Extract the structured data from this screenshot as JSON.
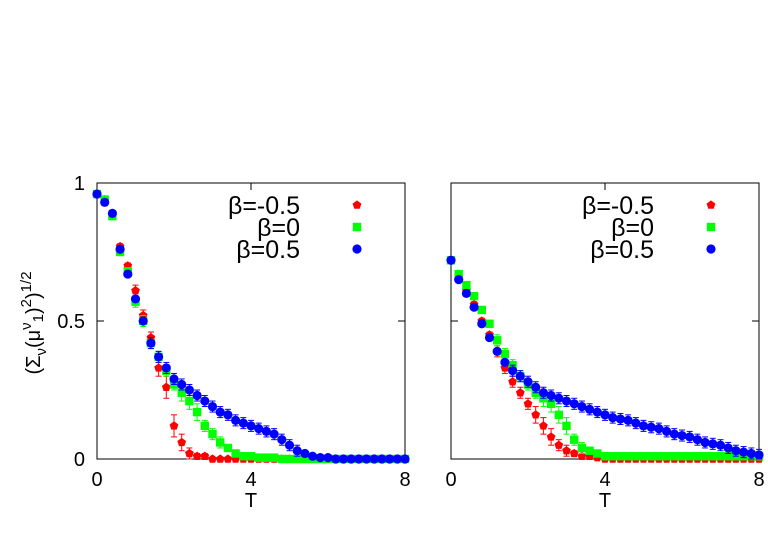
{
  "chart_data": [
    {
      "type": "scatter",
      "panel": "left",
      "xlabel": "T",
      "ylabel": "(Σ_ν(μ^ν_1)^2)^1/2",
      "xlim": [
        0,
        8
      ],
      "ylim": [
        0,
        1
      ],
      "xticks": [
        "0",
        "4",
        "8"
      ],
      "yticks": [
        "0",
        "0.5",
        "1"
      ],
      "grid": false,
      "legend_position": "top-right",
      "series": [
        {
          "name": "β=-0.5",
          "color": "#ff0000",
          "marker": "pentagon",
          "x": [
            0.0,
            0.2,
            0.4,
            0.6,
            0.8,
            1.0,
            1.2,
            1.4,
            1.6,
            1.8,
            2.0,
            2.2,
            2.4,
            2.6,
            2.8,
            3.0,
            3.2,
            3.4,
            3.6,
            3.8,
            4.0,
            4.2,
            4.4,
            4.6,
            4.8,
            5.0,
            5.2,
            5.4,
            5.6,
            5.8,
            6.0,
            6.2,
            6.4,
            6.6,
            6.8,
            7.0,
            7.2,
            7.4,
            7.6,
            7.8,
            8.0
          ],
          "y": [
            0.96,
            0.94,
            0.89,
            0.77,
            0.7,
            0.61,
            0.52,
            0.44,
            0.33,
            0.26,
            0.12,
            0.06,
            0.02,
            0.01,
            0.01,
            0.0,
            0.0,
            0.0,
            0.0,
            0.0,
            0.0,
            0.0,
            0.0,
            0.0,
            0.0,
            0.0,
            0.0,
            0.0,
            0.0,
            0.0,
            0.0,
            0.0,
            0.0,
            0.0,
            0.0,
            0.0,
            0.0,
            0.0,
            0.0,
            0.0,
            0.0
          ],
          "err": [
            0.01,
            0.01,
            0.01,
            0.01,
            0.01,
            0.02,
            0.02,
            0.02,
            0.03,
            0.04,
            0.04,
            0.03,
            0.02,
            0.01,
            0.01,
            0.005,
            0.005,
            0.005,
            0.005,
            0.005,
            0.005,
            0.005,
            0.005,
            0.005,
            0.005,
            0.005,
            0.005,
            0.005,
            0.005,
            0.005,
            0.005,
            0.005,
            0.005,
            0.005,
            0.005,
            0.005,
            0.005,
            0.005,
            0.005,
            0.005,
            0.005
          ]
        },
        {
          "name": "β=0",
          "color": "#00ff00",
          "marker": "square",
          "x": [
            0.0,
            0.2,
            0.4,
            0.6,
            0.8,
            1.0,
            1.2,
            1.4,
            1.6,
            1.8,
            2.0,
            2.2,
            2.4,
            2.6,
            2.8,
            3.0,
            3.2,
            3.4,
            3.6,
            3.8,
            4.0,
            4.2,
            4.4,
            4.6,
            4.8,
            5.0,
            5.2,
            5.4,
            5.6,
            5.8,
            6.0,
            6.2,
            6.4,
            6.6,
            6.8,
            7.0,
            7.2,
            7.4,
            7.6,
            7.8,
            8.0
          ],
          "y": [
            0.96,
            0.94,
            0.88,
            0.75,
            0.68,
            0.57,
            0.5,
            0.42,
            0.37,
            0.32,
            0.27,
            0.24,
            0.21,
            0.17,
            0.12,
            0.09,
            0.06,
            0.04,
            0.02,
            0.01,
            0.01,
            0.005,
            0.005,
            0.005,
            0.0,
            0.0,
            0.0,
            0.0,
            0.0,
            0.0,
            0.0,
            0.0,
            0.0,
            0.0,
            0.0,
            0.0,
            0.0,
            0.0,
            0.0,
            0.0,
            0.0
          ],
          "err": [
            0.01,
            0.01,
            0.01,
            0.01,
            0.01,
            0.02,
            0.02,
            0.02,
            0.02,
            0.02,
            0.02,
            0.03,
            0.03,
            0.03,
            0.02,
            0.02,
            0.02,
            0.01,
            0.01,
            0.01,
            0.005,
            0.005,
            0.005,
            0.005,
            0.005,
            0.005,
            0.005,
            0.005,
            0.005,
            0.005,
            0.005,
            0.005,
            0.005,
            0.005,
            0.005,
            0.005,
            0.005,
            0.005,
            0.005,
            0.005,
            0.005
          ]
        },
        {
          "name": "β=0.5",
          "color": "#0000ff",
          "marker": "circle",
          "x": [
            0.0,
            0.2,
            0.4,
            0.6,
            0.8,
            1.0,
            1.2,
            1.4,
            1.6,
            1.8,
            2.0,
            2.2,
            2.4,
            2.6,
            2.8,
            3.0,
            3.2,
            3.4,
            3.6,
            3.8,
            4.0,
            4.2,
            4.4,
            4.6,
            4.8,
            5.0,
            5.2,
            5.4,
            5.6,
            5.8,
            6.0,
            6.2,
            6.4,
            6.6,
            6.8,
            7.0,
            7.2,
            7.4,
            7.6,
            7.8,
            8.0
          ],
          "y": [
            0.96,
            0.93,
            0.89,
            0.76,
            0.67,
            0.58,
            0.5,
            0.42,
            0.37,
            0.33,
            0.29,
            0.27,
            0.25,
            0.23,
            0.21,
            0.19,
            0.17,
            0.16,
            0.14,
            0.13,
            0.12,
            0.11,
            0.1,
            0.09,
            0.07,
            0.05,
            0.03,
            0.02,
            0.01,
            0.005,
            0.005,
            0.0,
            0.0,
            0.0,
            0.0,
            0.0,
            0.0,
            0.0,
            0.0,
            0.0,
            0.0
          ],
          "err": [
            0.01,
            0.01,
            0.01,
            0.01,
            0.01,
            0.01,
            0.01,
            0.02,
            0.02,
            0.02,
            0.02,
            0.02,
            0.02,
            0.02,
            0.02,
            0.02,
            0.02,
            0.02,
            0.02,
            0.02,
            0.02,
            0.02,
            0.02,
            0.02,
            0.02,
            0.02,
            0.02,
            0.01,
            0.01,
            0.005,
            0.005,
            0.005,
            0.005,
            0.005,
            0.005,
            0.005,
            0.005,
            0.005,
            0.005,
            0.005,
            0.005
          ]
        }
      ]
    },
    {
      "type": "scatter",
      "panel": "right",
      "xlabel": "T",
      "ylabel": "",
      "xlim": [
        0,
        8
      ],
      "ylim": [
        0,
        1
      ],
      "xticks": [
        "0",
        "4",
        "8"
      ],
      "yticks": [],
      "grid": false,
      "legend_position": "top-right",
      "series": [
        {
          "name": "β=-0.5",
          "color": "#ff0000",
          "marker": "pentagon",
          "x": [
            0.0,
            0.2,
            0.4,
            0.6,
            0.8,
            1.0,
            1.2,
            1.4,
            1.6,
            1.8,
            2.0,
            2.2,
            2.4,
            2.6,
            2.8,
            3.0,
            3.2,
            3.4,
            3.6,
            3.8,
            4.0,
            4.2,
            4.4,
            4.6,
            4.8,
            5.0,
            5.2,
            5.4,
            5.6,
            5.8,
            6.0,
            6.2,
            6.4,
            6.6,
            6.8,
            7.0,
            7.2,
            7.4,
            7.6,
            7.8,
            8.0
          ],
          "y": [
            0.72,
            0.66,
            0.61,
            0.56,
            0.5,
            0.45,
            0.39,
            0.33,
            0.28,
            0.24,
            0.2,
            0.16,
            0.12,
            0.08,
            0.05,
            0.03,
            0.02,
            0.01,
            0.01,
            0.005,
            0.0,
            0.0,
            0.0,
            0.0,
            0.0,
            0.0,
            0.0,
            0.0,
            0.0,
            0.0,
            0.0,
            0.0,
            0.0,
            0.0,
            0.0,
            0.0,
            0.0,
            0.0,
            0.0,
            0.0,
            0.0
          ],
          "err": [
            0.01,
            0.01,
            0.01,
            0.01,
            0.01,
            0.01,
            0.02,
            0.02,
            0.02,
            0.02,
            0.02,
            0.03,
            0.03,
            0.03,
            0.02,
            0.02,
            0.01,
            0.01,
            0.01,
            0.005,
            0.005,
            0.005,
            0.005,
            0.005,
            0.005,
            0.005,
            0.005,
            0.005,
            0.005,
            0.005,
            0.005,
            0.005,
            0.005,
            0.005,
            0.005,
            0.005,
            0.005,
            0.005,
            0.005,
            0.005,
            0.005
          ]
        },
        {
          "name": "β=0",
          "color": "#00ff00",
          "marker": "square",
          "x": [
            0.0,
            0.2,
            0.4,
            0.6,
            0.8,
            1.0,
            1.2,
            1.4,
            1.6,
            1.8,
            2.0,
            2.2,
            2.4,
            2.6,
            2.8,
            3.0,
            3.2,
            3.4,
            3.6,
            3.8,
            4.0,
            4.2,
            4.4,
            4.6,
            4.8,
            5.0,
            5.2,
            5.4,
            5.6,
            5.8,
            6.0,
            6.2,
            6.4,
            6.6,
            6.8,
            7.0,
            7.2,
            7.4,
            7.6,
            7.8,
            8.0
          ],
          "y": [
            0.72,
            0.67,
            0.63,
            0.59,
            0.54,
            0.49,
            0.43,
            0.38,
            0.34,
            0.3,
            0.27,
            0.24,
            0.22,
            0.2,
            0.16,
            0.12,
            0.07,
            0.04,
            0.03,
            0.02,
            0.01,
            0.01,
            0.01,
            0.01,
            0.01,
            0.01,
            0.01,
            0.01,
            0.01,
            0.01,
            0.01,
            0.01,
            0.01,
            0.01,
            0.01,
            0.01,
            0.01,
            0.01,
            0.01,
            0.01,
            0.01
          ],
          "err": [
            0.01,
            0.01,
            0.01,
            0.01,
            0.01,
            0.01,
            0.02,
            0.02,
            0.02,
            0.02,
            0.02,
            0.02,
            0.03,
            0.03,
            0.03,
            0.03,
            0.02,
            0.02,
            0.01,
            0.01,
            0.005,
            0.005,
            0.005,
            0.005,
            0.005,
            0.005,
            0.005,
            0.005,
            0.005,
            0.005,
            0.005,
            0.005,
            0.005,
            0.005,
            0.005,
            0.005,
            0.005,
            0.005,
            0.005,
            0.005,
            0.005
          ]
        },
        {
          "name": "β=0.5",
          "color": "#0000ff",
          "marker": "circle",
          "x": [
            0.0,
            0.2,
            0.4,
            0.6,
            0.8,
            1.0,
            1.2,
            1.4,
            1.6,
            1.8,
            2.0,
            2.2,
            2.4,
            2.6,
            2.8,
            3.0,
            3.2,
            3.4,
            3.6,
            3.8,
            4.0,
            4.2,
            4.4,
            4.6,
            4.8,
            5.0,
            5.2,
            5.4,
            5.6,
            5.8,
            6.0,
            6.2,
            6.4,
            6.6,
            6.8,
            7.0,
            7.2,
            7.4,
            7.6,
            7.8,
            8.0
          ],
          "y": [
            0.72,
            0.65,
            0.6,
            0.55,
            0.49,
            0.44,
            0.39,
            0.35,
            0.32,
            0.3,
            0.28,
            0.26,
            0.24,
            0.23,
            0.22,
            0.21,
            0.2,
            0.19,
            0.18,
            0.17,
            0.16,
            0.15,
            0.145,
            0.14,
            0.13,
            0.12,
            0.115,
            0.11,
            0.1,
            0.09,
            0.085,
            0.08,
            0.07,
            0.06,
            0.055,
            0.05,
            0.04,
            0.03,
            0.025,
            0.02,
            0.015
          ],
          "err": [
            0.01,
            0.01,
            0.01,
            0.01,
            0.01,
            0.01,
            0.01,
            0.01,
            0.02,
            0.02,
            0.02,
            0.02,
            0.02,
            0.02,
            0.02,
            0.02,
            0.02,
            0.02,
            0.02,
            0.02,
            0.02,
            0.02,
            0.02,
            0.02,
            0.02,
            0.02,
            0.02,
            0.02,
            0.02,
            0.02,
            0.02,
            0.02,
            0.02,
            0.02,
            0.02,
            0.02,
            0.02,
            0.02,
            0.02,
            0.02,
            0.02
          ]
        }
      ]
    }
  ]
}
